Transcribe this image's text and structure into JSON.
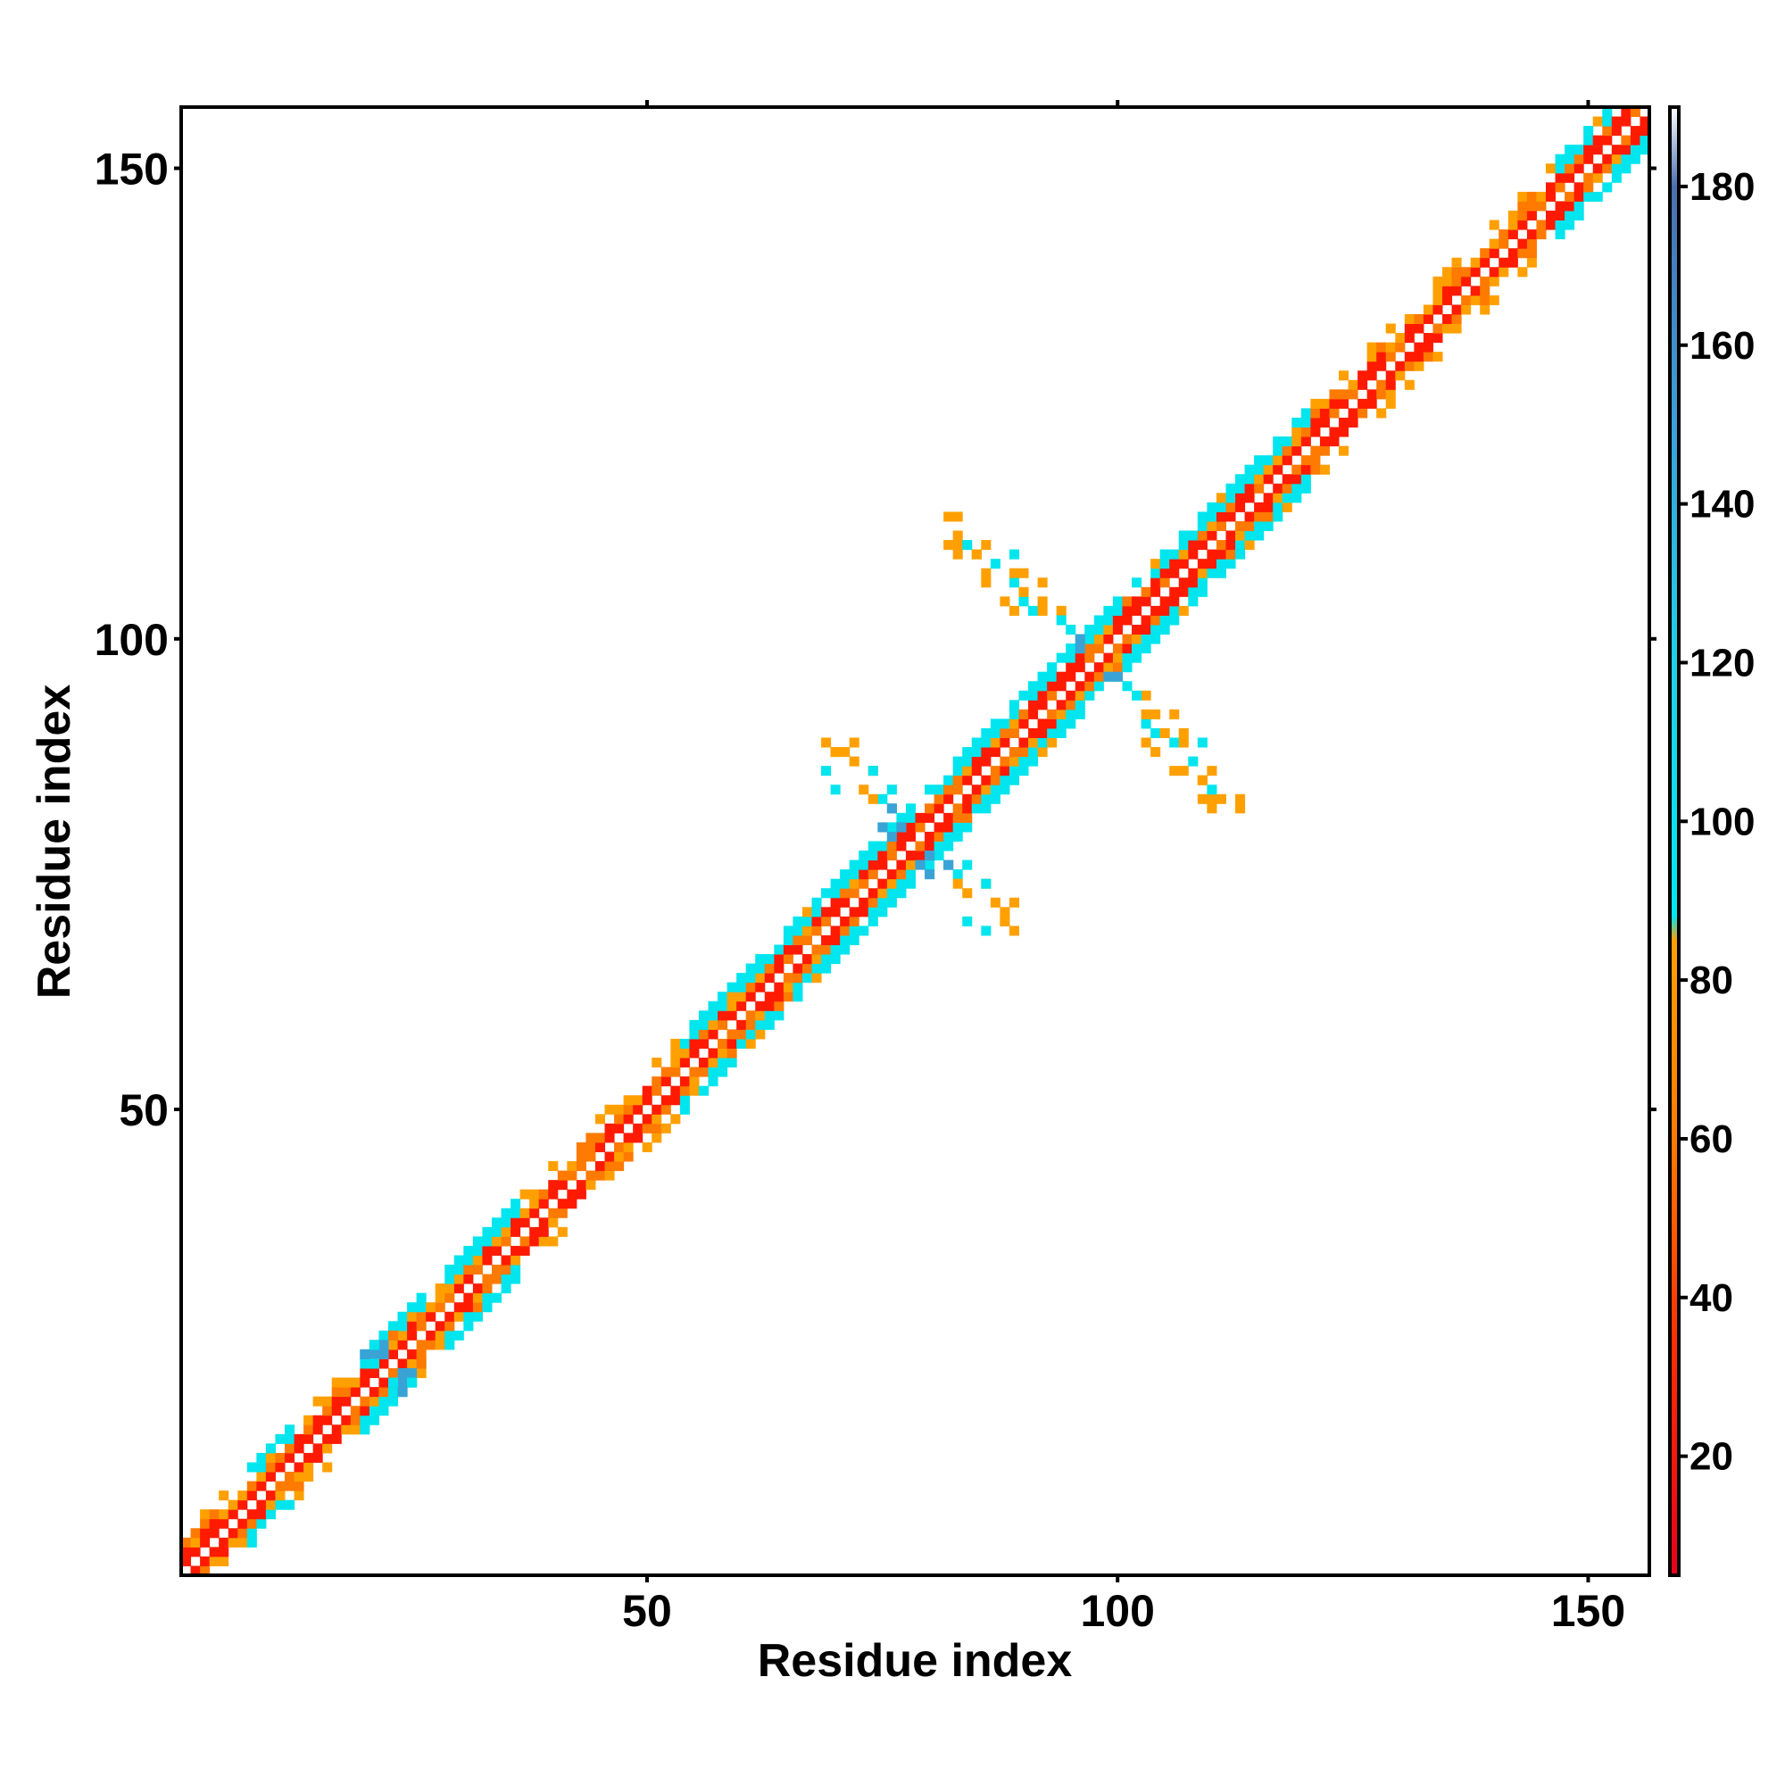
{
  "chart_data": {
    "type": "heatmap",
    "title": "",
    "xlabel": "Residue index",
    "ylabel": "Residue index",
    "xlim": [
      1,
      156
    ],
    "ylim": [
      1,
      156
    ],
    "x_ticks": [
      50,
      100,
      150
    ],
    "y_ticks": [
      50,
      100,
      150
    ],
    "grid": false,
    "colorbar": {
      "range": [
        5,
        190
      ],
      "ticks": [
        20,
        40,
        60,
        80,
        100,
        120,
        140,
        160,
        180
      ],
      "stops": [
        {
          "value": 5,
          "color": "#e8001a"
        },
        {
          "value": 35,
          "color": "#ff3000"
        },
        {
          "value": 60,
          "color": "#ff7a00"
        },
        {
          "value": 85,
          "color": "#ffa000"
        },
        {
          "value": 88,
          "color": "#00e8f0"
        },
        {
          "value": 120,
          "color": "#20d0e8"
        },
        {
          "value": 150,
          "color": "#3aa0d8"
        },
        {
          "value": 180,
          "color": "#4a6fb0"
        },
        {
          "value": 190,
          "color": "#ffffff"
        }
      ]
    },
    "structure": {
      "diagonal_range": [
        1,
        156
      ],
      "band_palette": {
        "near": "#ff1a00",
        "mid": "#ff7a00",
        "far": "#ffa000",
        "helix": "#00e5ee",
        "steel": "#3aa3d6"
      },
      "helix_segments": [
        {
          "from": 8,
          "to": 12,
          "width": 3
        },
        {
          "from": 20,
          "to": 26,
          "width": 3
        },
        {
          "from": 29,
          "to": 36,
          "width": 3
        },
        {
          "from": 54,
          "to": 62,
          "width": 3
        },
        {
          "from": 62,
          "to": 78,
          "width": 4
        },
        {
          "from": 80,
          "to": 100,
          "width": 5
        },
        {
          "from": 100,
          "to": 120,
          "width": 5
        },
        {
          "from": 147,
          "to": 156,
          "width": 3
        }
      ],
      "contacts": [
        [
          20,
          24,
          "steel"
        ],
        [
          21,
          24,
          "steel"
        ],
        [
          22,
          24,
          "steel"
        ],
        [
          24,
          20,
          "steel"
        ],
        [
          24,
          21,
          "steel"
        ],
        [
          25,
          21,
          "steel"
        ],
        [
          25,
          22,
          "steel"
        ],
        [
          21,
          25,
          "helix"
        ],
        [
          23,
          21,
          "helix"
        ],
        [
          26,
          23,
          "mid"
        ],
        [
          70,
          88,
          "far"
        ],
        [
          71,
          88,
          "far"
        ],
        [
          74,
          86,
          "far"
        ],
        [
          70,
          84,
          "helix"
        ],
        [
          73,
          84,
          "far"
        ],
        [
          75,
          83,
          "helix"
        ],
        [
          76,
          82,
          "steel"
        ],
        [
          75,
          80,
          "steel"
        ],
        [
          77,
          80,
          "steel"
        ],
        [
          76,
          79,
          "steel"
        ],
        [
          84,
          76,
          "helix"
        ],
        [
          86,
          74,
          "helix"
        ],
        [
          87,
          72,
          "far"
        ],
        [
          89,
          72,
          "far"
        ],
        [
          88,
          70,
          "far"
        ],
        [
          89,
          69,
          "far"
        ],
        [
          86,
          69,
          "helix"
        ],
        [
          83,
          74,
          "far"
        ],
        [
          82,
          76,
          "steel"
        ],
        [
          80,
          77,
          "steel"
        ],
        [
          82,
          113,
          "far"
        ],
        [
          82,
          110,
          "far"
        ],
        [
          83,
          111,
          "far"
        ],
        [
          86,
          110,
          "far"
        ],
        [
          85,
          109,
          "far"
        ],
        [
          89,
          109,
          "helix"
        ],
        [
          86,
          107,
          "far"
        ],
        [
          90,
          107,
          "far"
        ],
        [
          89,
          106,
          "helix"
        ],
        [
          88,
          104,
          "far"
        ],
        [
          89,
          103,
          "far"
        ],
        [
          91,
          103,
          "helix"
        ],
        [
          92,
          104,
          "far"
        ],
        [
          94,
          103,
          "far"
        ],
        [
          95,
          101,
          "helix"
        ],
        [
          96,
          99,
          "steel"
        ],
        [
          103,
          92,
          "far"
        ],
        [
          106,
          92,
          "far"
        ],
        [
          104,
          90,
          "helix"
        ],
        [
          105,
          90,
          "far"
        ],
        [
          107,
          89,
          "far"
        ],
        [
          108,
          87,
          "helix"
        ],
        [
          106,
          86,
          "far"
        ],
        [
          109,
          85,
          "far"
        ],
        [
          110,
          83,
          "far"
        ],
        [
          113,
          83,
          "far"
        ],
        [
          109,
          83,
          "far"
        ],
        [
          110,
          84,
          "helix"
        ],
        [
          100,
          96,
          "steel"
        ],
        [
          102,
          94,
          "helix"
        ],
        [
          101,
          97,
          "helix"
        ]
      ]
    }
  }
}
